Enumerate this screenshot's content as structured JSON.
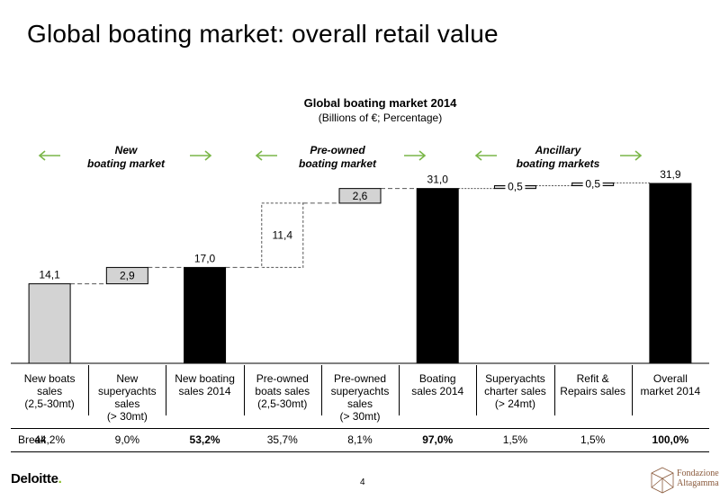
{
  "page": {
    "title": "Global boating market: overall retail value",
    "page_number": "4",
    "logo_text": "Deloitte",
    "logo_dot": ".",
    "partner_logo_lines": [
      "Fondazione",
      "Altagamma"
    ]
  },
  "groups": [
    {
      "line1": "New",
      "line2": "boating market"
    },
    {
      "line1": "Pre-owned",
      "line2": "boating market"
    },
    {
      "line1": "Ancillary",
      "line2": "boating markets"
    }
  ],
  "break_row": {
    "label": "Break",
    "values": [
      "44,2%",
      "9,0%",
      "53,2%",
      "35,7%",
      "8,1%",
      "97,0%",
      "1,5%",
      "1,5%",
      "100,0%"
    ],
    "bold": [
      false,
      false,
      true,
      false,
      false,
      true,
      false,
      false,
      true
    ]
  },
  "colors": {
    "accent_arrow": "#7ab648",
    "bar_gray": "#d3d3d3",
    "bar_black": "#000000",
    "connector": "#555555"
  },
  "chart_data": {
    "type": "bar",
    "subtype": "waterfall",
    "title": "Global boating market 2014",
    "subtitle": "(Billions of €; Percentage)",
    "categories": [
      [
        "New boats",
        "sales",
        "(2,5-30mt)"
      ],
      [
        "New",
        "superyachts",
        "sales",
        "(> 30mt)"
      ],
      [
        "New boating",
        "sales 2014"
      ],
      [
        "Pre-owned",
        "boats sales",
        "(2,5-30mt)"
      ],
      [
        "Pre-owned",
        "superyachts",
        "sales",
        "(> 30mt)"
      ],
      [
        "Boating",
        "sales 2014"
      ],
      [
        "Superyachts",
        "charter sales",
        "(> 24mt)"
      ],
      [
        "Refit &",
        "Repairs sales"
      ],
      [
        "Overall",
        "market 2014"
      ]
    ],
    "values": [
      14.1,
      2.9,
      17.0,
      11.4,
      2.6,
      31.0,
      0.5,
      0.5,
      31.9
    ],
    "labels": [
      "14,1",
      "2,9",
      "17,0",
      "11,4",
      "2,6",
      "31,0",
      "0,5",
      "0,5",
      "31,9"
    ],
    "kind": [
      "base",
      "increment",
      "total",
      "increment-dashed",
      "increment",
      "total",
      "increment",
      "increment",
      "total"
    ],
    "ylim": [
      0,
      32
    ]
  }
}
